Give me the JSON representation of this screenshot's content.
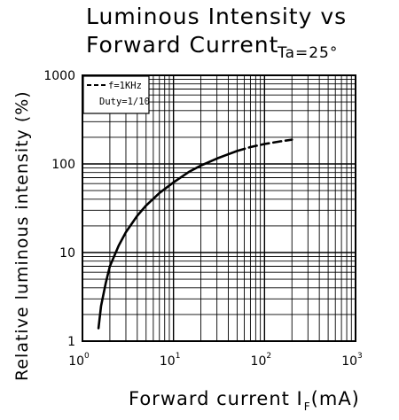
{
  "chart_data": {
    "type": "line",
    "title_line1": "Luminous Intensity vs",
    "title_line2": "Forward Current",
    "condition": "Ta=25°",
    "xlabel": "Forward current I",
    "xlabel_sub": "F",
    "xlabel_unit": "(mA)",
    "ylabel": "Relative luminous intensity (%)",
    "x_scale": "log",
    "y_scale": "log",
    "xlim": [
      1,
      1000
    ],
    "ylim": [
      1,
      1000
    ],
    "x_ticks": [
      {
        "base": "10",
        "exp": "0",
        "value": 1
      },
      {
        "base": "10",
        "exp": "1",
        "value": 10
      },
      {
        "base": "10",
        "exp": "2",
        "value": 100
      },
      {
        "base": "10",
        "exp": "3",
        "value": 1000
      }
    ],
    "y_ticks": [
      {
        "label": "1",
        "value": 1
      },
      {
        "label": "10",
        "value": 10
      },
      {
        "label": "100",
        "value": 100
      },
      {
        "label": "1000",
        "value": 1000
      }
    ],
    "grid": true,
    "legend_position": "top-left",
    "legend": {
      "line1": "f=1KHz",
      "line2": "Duty=1/10"
    },
    "series": [
      {
        "style": "solid",
        "x": [
          1.5,
          1.6,
          1.8,
          2,
          2.5,
          3,
          4,
          5,
          7,
          10,
          15,
          20,
          30,
          50
        ],
        "y": [
          1.4,
          2.5,
          4.5,
          7,
          12,
          17,
          26,
          34,
          47,
          62,
          82,
          96,
          115,
          140
        ]
      },
      {
        "style": "dashed",
        "x": [
          50,
          70,
          100,
          150,
          200
        ],
        "y": [
          140,
          155,
          168,
          180,
          188
        ]
      }
    ]
  }
}
